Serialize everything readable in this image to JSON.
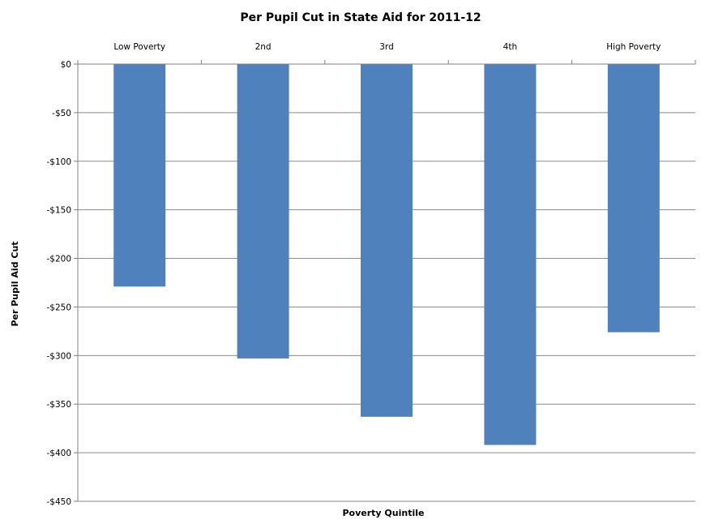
{
  "chart_data": {
    "type": "bar",
    "title": "Per Pupil Cut in State Aid for 2011-12",
    "xlabel": "Poverty Quintile",
    "ylabel": "Per Pupil Aid Cut",
    "categories": [
      "Low Poverty",
      "2nd",
      "3rd",
      "4th",
      "High Poverty"
    ],
    "values": [
      -229,
      -303,
      -363,
      -392,
      -276
    ],
    "yticks": [
      "$0",
      "-$50",
      "-$100",
      "-$150",
      "-$200",
      "-$250",
      "-$300",
      "-$350",
      "-$400",
      "-$450"
    ],
    "ylim": [
      -450,
      0
    ],
    "category_axis_position": "top",
    "grid": true,
    "legend": "none",
    "bar_color": "#4f81bd",
    "grid_color": "#8c8c8c"
  }
}
